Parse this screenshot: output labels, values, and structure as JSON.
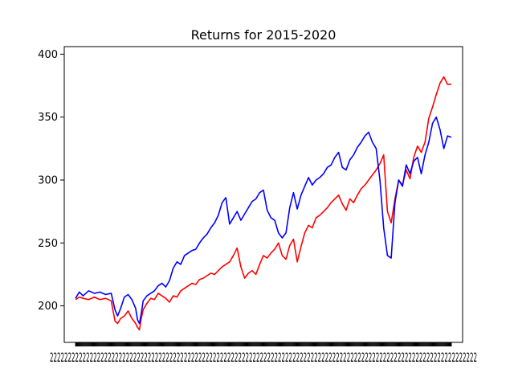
{
  "chart_data": {
    "type": "line",
    "title": "Returns for 2015-2020",
    "xlabel": "",
    "ylabel": "",
    "xlim": [
      -0.03,
      1.03
    ],
    "ylim": [
      171,
      406
    ],
    "yticks": [
      200,
      250,
      300,
      350,
      400
    ],
    "x_tick_labels_note": "Dense overlapping date tick labels, illegible",
    "grid": false,
    "legend": "none",
    "series": [
      {
        "color": "#ff0000",
        "x": [
          0.0,
          0.01,
          0.02,
          0.035,
          0.05,
          0.065,
          0.08,
          0.095,
          0.105,
          0.112,
          0.12,
          0.13,
          0.14,
          0.15,
          0.16,
          0.165,
          0.17,
          0.175,
          0.18,
          0.19,
          0.2,
          0.21,
          0.22,
          0.23,
          0.24,
          0.25,
          0.26,
          0.27,
          0.28,
          0.29,
          0.3,
          0.31,
          0.32,
          0.33,
          0.34,
          0.35,
          0.36,
          0.37,
          0.38,
          0.39,
          0.4,
          0.41,
          0.42,
          0.43,
          0.44,
          0.45,
          0.46,
          0.47,
          0.48,
          0.49,
          0.5,
          0.51,
          0.52,
          0.53,
          0.54,
          0.55,
          0.56,
          0.57,
          0.58,
          0.59,
          0.6,
          0.61,
          0.62,
          0.63,
          0.64,
          0.65,
          0.66,
          0.67,
          0.68,
          0.69,
          0.7,
          0.71,
          0.72,
          0.73,
          0.74,
          0.75,
          0.76,
          0.77,
          0.78,
          0.79,
          0.8,
          0.81,
          0.82,
          0.83,
          0.84,
          0.85,
          0.86,
          0.87,
          0.88,
          0.89,
          0.9,
          0.91,
          0.92,
          0.93,
          0.94,
          0.95,
          0.96,
          0.97,
          0.98,
          0.99,
          1.0
        ],
        "values": [
          205,
          207,
          206,
          205,
          207,
          205,
          206,
          204,
          188,
          186,
          190,
          192,
          196,
          190,
          186,
          183,
          181,
          190,
          197,
          202,
          206,
          205,
          210,
          208,
          206,
          203,
          208,
          207,
          212,
          214,
          216,
          218,
          217,
          221,
          222,
          224,
          226,
          225,
          228,
          231,
          233,
          235,
          240,
          246,
          231,
          222,
          226,
          228,
          225,
          233,
          240,
          238,
          242,
          245,
          250,
          240,
          237,
          248,
          253,
          235,
          247,
          258,
          264,
          262,
          270,
          272,
          275,
          278,
          282,
          285,
          288,
          281,
          276,
          285,
          282,
          288,
          293,
          296,
          300,
          304,
          308,
          313,
          320,
          275,
          266,
          285,
          300,
          296,
          308,
          301,
          318,
          327,
          322,
          330,
          349,
          358,
          368,
          377,
          382,
          376,
          376
        ]
      },
      {
        "color": "#0000ff",
        "x": [
          0.0,
          0.01,
          0.02,
          0.035,
          0.05,
          0.065,
          0.08,
          0.095,
          0.105,
          0.112,
          0.12,
          0.13,
          0.14,
          0.15,
          0.16,
          0.165,
          0.17,
          0.175,
          0.18,
          0.19,
          0.2,
          0.21,
          0.22,
          0.23,
          0.24,
          0.25,
          0.26,
          0.27,
          0.28,
          0.29,
          0.3,
          0.31,
          0.32,
          0.33,
          0.34,
          0.35,
          0.36,
          0.37,
          0.38,
          0.39,
          0.4,
          0.41,
          0.42,
          0.43,
          0.44,
          0.45,
          0.46,
          0.47,
          0.48,
          0.49,
          0.5,
          0.51,
          0.52,
          0.53,
          0.54,
          0.55,
          0.56,
          0.57,
          0.58,
          0.59,
          0.6,
          0.61,
          0.62,
          0.63,
          0.64,
          0.65,
          0.66,
          0.67,
          0.68,
          0.69,
          0.7,
          0.71,
          0.72,
          0.73,
          0.74,
          0.75,
          0.76,
          0.77,
          0.78,
          0.79,
          0.8,
          0.81,
          0.82,
          0.83,
          0.84,
          0.85,
          0.86,
          0.87,
          0.88,
          0.89,
          0.9,
          0.91,
          0.92,
          0.93,
          0.94,
          0.95,
          0.96,
          0.97,
          0.98,
          0.99,
          1.0
        ],
        "values": [
          206,
          211,
          208,
          212,
          210,
          211,
          209,
          210,
          197,
          192,
          198,
          207,
          209,
          205,
          198,
          189,
          186,
          194,
          204,
          208,
          210,
          212,
          216,
          218,
          215,
          220,
          230,
          235,
          233,
          240,
          242,
          244,
          245,
          250,
          254,
          257,
          262,
          266,
          272,
          282,
          286,
          265,
          270,
          275,
          268,
          273,
          278,
          283,
          285,
          290,
          292,
          276,
          270,
          268,
          258,
          254,
          258,
          278,
          290,
          277,
          288,
          295,
          302,
          296,
          300,
          302,
          305,
          310,
          312,
          318,
          322,
          310,
          308,
          316,
          320,
          326,
          330,
          335,
          338,
          330,
          325,
          300,
          262,
          240,
          238,
          282,
          300,
          295,
          312,
          305,
          315,
          318,
          305,
          320,
          330,
          345,
          350,
          340,
          325,
          335,
          334
        ]
      }
    ]
  }
}
